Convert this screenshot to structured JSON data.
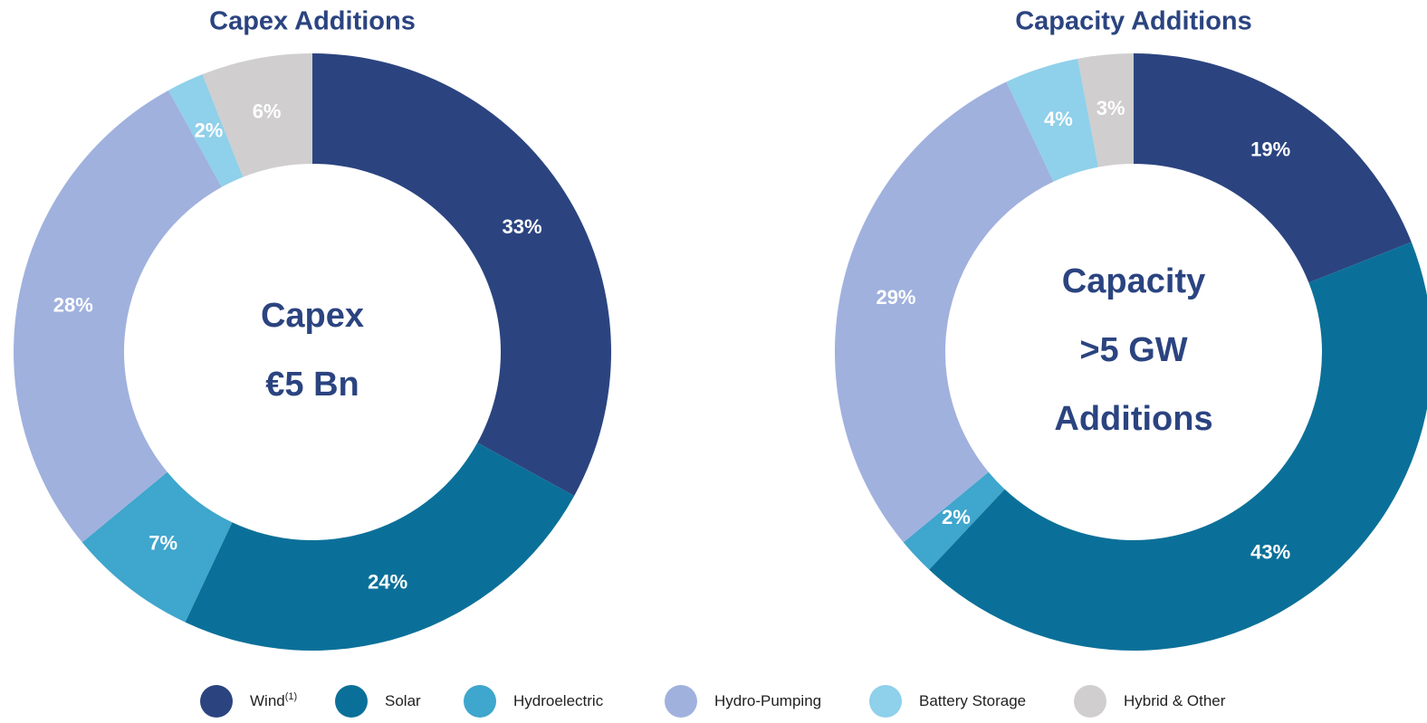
{
  "chart_data": [
    {
      "type": "donut",
      "title": "Capex Additions",
      "center_text": [
        "Capex",
        "€5 Bn"
      ],
      "values": [
        33,
        24,
        7,
        28,
        2,
        6
      ],
      "value_labels": [
        "33%",
        "24%",
        "7%",
        "28%",
        "2%",
        "6%"
      ]
    },
    {
      "type": "donut",
      "title": "Capacity Additions",
      "center_text": [
        "Capacity",
        ">5 GW",
        "Additions"
      ],
      "values": [
        19,
        43,
        2,
        29,
        4,
        3
      ],
      "value_labels": [
        "19%",
        "43%",
        "2%",
        "29%",
        "4%",
        "3%"
      ]
    }
  ],
  "legend": {
    "items": [
      {
        "name": "Wind",
        "note": "(1)",
        "color": "#2b4480"
      },
      {
        "name": "Solar",
        "color": "#0b7099"
      },
      {
        "name": "Hydroelectric",
        "color": "#3fa6cd"
      },
      {
        "name": "Hydro-Pumping",
        "color": "#a0b1de"
      },
      {
        "name": "Battery Storage",
        "color": "#8fd0ea"
      },
      {
        "name": "Hybrid & Other",
        "color": "#d0cece"
      }
    ]
  }
}
